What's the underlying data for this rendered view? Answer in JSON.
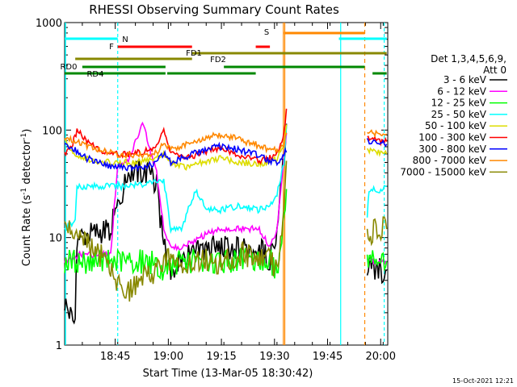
{
  "chart_data": {
    "type": "line",
    "title": "RHESSI Observing Summary Count Rates",
    "xlabel": "Start Time (13-Mar-05 18:30:42)",
    "ylabel_main": "Count Rate (s",
    "ylabel_sup1": "-1",
    "ylabel_mid": " detector",
    "ylabel_sup2": "-1",
    "ylabel_end": ")",
    "yscale": "log",
    "ylim": [
      1,
      1000
    ],
    "xlim_minutes": [
      0,
      91.3
    ],
    "x_ticks": [
      {
        "m": 14.3,
        "label": "18:45"
      },
      {
        "m": 29.3,
        "label": "19:00"
      },
      {
        "m": 44.3,
        "label": "19:15"
      },
      {
        "m": 59.3,
        "label": "19:30"
      },
      {
        "m": 74.3,
        "label": "19:45"
      },
      {
        "m": 89.3,
        "label": "20:00"
      }
    ],
    "y_ticks": [
      {
        "v": 1,
        "label": "1"
      },
      {
        "v": 10,
        "label": "10"
      },
      {
        "v": 100,
        "label": "100"
      },
      {
        "v": 1000,
        "label": "1000"
      }
    ],
    "legend_title": "Det 1,3,4,5,6,9,",
    "legend_subtitle": "Att 0",
    "legend_placement": "right",
    "timestamp": "15-Oct-2021 12:21",
    "series": [
      {
        "name": "3 - 6 keV",
        "color": "#000000",
        "x": [
          0,
          3,
          3.5,
          13,
          18,
          24,
          26,
          28,
          30,
          33,
          40,
          48,
          55,
          58,
          60,
          61,
          62,
          63,
          85.5,
          87,
          89,
          91
        ],
        "y": [
          2.5,
          1.5,
          10,
          12,
          40,
          40,
          30,
          8,
          5,
          6,
          8,
          8,
          8,
          6,
          10,
          25,
          60,
          150,
          5,
          5,
          5,
          5
        ]
      },
      {
        "name": "6 - 12 keV",
        "color": "#ff00ff",
        "x": [
          0,
          4,
          4.5,
          13,
          15,
          18,
          22,
          26,
          28,
          30,
          33,
          38,
          44,
          50,
          55,
          58,
          60,
          61,
          62,
          63,
          85.5,
          87,
          89,
          91
        ],
        "y": [
          6,
          7,
          7,
          7,
          50,
          50,
          120,
          40,
          12,
          8,
          8,
          10,
          12,
          12,
          12,
          8,
          12,
          25,
          60,
          120,
          6,
          6,
          6,
          6
        ]
      },
      {
        "name": "12 - 25 keV",
        "color": "#00ff00",
        "x": [
          0,
          10,
          20,
          25,
          28,
          32,
          40,
          48,
          55,
          58,
          60,
          61,
          62,
          63,
          85.5,
          87,
          89,
          91
        ],
        "y": [
          6,
          6,
          6,
          6,
          5,
          6,
          6,
          6,
          6,
          6,
          5,
          8,
          15,
          40,
          6,
          6,
          6,
          6
        ]
      },
      {
        "name": "25 - 50 keV",
        "color": "#00ffff",
        "x": [
          0,
          3,
          3.5,
          13,
          18,
          24,
          28,
          30,
          33,
          37,
          40,
          44,
          50,
          55,
          58,
          60,
          62,
          63,
          85.5,
          86,
          88,
          90,
          91
        ],
        "y": [
          12,
          14,
          30,
          30,
          30,
          32,
          35,
          12,
          12,
          28,
          18,
          18,
          20,
          18,
          20,
          25,
          50,
          150,
          15,
          28,
          28,
          28,
          30
        ]
      },
      {
        "name": "50 - 100 keV",
        "color": "#dddd00",
        "x": [
          0,
          3,
          5,
          8,
          13,
          18,
          24,
          28,
          30,
          34,
          38,
          44,
          50,
          55,
          58,
          60,
          62,
          63,
          85.5,
          87,
          89,
          91
        ],
        "y": [
          80,
          60,
          55,
          52,
          50,
          50,
          52,
          60,
          50,
          45,
          50,
          55,
          50,
          48,
          50,
          55,
          70,
          150,
          65,
          65,
          62,
          60
        ]
      },
      {
        "name": "100 - 300 keV",
        "color": "#ff0000",
        "x": [
          0,
          2,
          3.5,
          6,
          10,
          14,
          18,
          22,
          26,
          28,
          30,
          34,
          38,
          42,
          46,
          50,
          55,
          58,
          60,
          62,
          63,
          85.5,
          87,
          89,
          91
        ],
        "y": [
          60,
          70,
          100,
          80,
          65,
          60,
          60,
          62,
          70,
          100,
          60,
          55,
          60,
          68,
          65,
          58,
          52,
          55,
          60,
          90,
          190,
          85,
          82,
          80,
          78
        ]
      },
      {
        "name": "300 - 800 keV",
        "color": "#0000ff",
        "x": [
          0,
          3,
          6,
          10,
          14,
          18,
          22,
          26,
          28,
          30,
          34,
          38,
          42,
          46,
          50,
          55,
          58,
          60,
          62,
          63,
          85.5,
          87,
          89,
          91
        ],
        "y": [
          72,
          65,
          55,
          50,
          45,
          44,
          45,
          50,
          62,
          50,
          56,
          63,
          70,
          70,
          64,
          58,
          52,
          50,
          58,
          70,
          80,
          78,
          76,
          74
        ]
      },
      {
        "name": "800 - 7000 keV",
        "color": "#ff8800",
        "x": [
          0,
          3,
          6,
          10,
          14,
          18,
          22,
          26,
          28,
          30,
          34,
          38,
          42,
          46,
          50,
          55,
          58,
          60,
          62,
          63,
          85.5,
          87,
          89,
          91
        ],
        "y": [
          85,
          80,
          72,
          65,
          60,
          58,
          58,
          62,
          75,
          65,
          72,
          80,
          88,
          88,
          80,
          72,
          65,
          65,
          72,
          110,
          95,
          95,
          93,
          92
        ]
      },
      {
        "name": "7000 - 15000 keV",
        "color": "#888800",
        "x": [
          0,
          4,
          8,
          12,
          14,
          16,
          18,
          22,
          26,
          28,
          30,
          36,
          42,
          46,
          50,
          55,
          58,
          60,
          61,
          62,
          63,
          85.5,
          87,
          89,
          91
        ],
        "y": [
          14,
          10,
          8,
          6,
          5,
          3,
          3,
          4,
          5,
          6,
          6,
          6,
          6,
          6,
          7,
          7,
          6,
          5,
          10,
          25,
          60,
          12,
          11,
          12,
          12
        ]
      }
    ],
    "ecl_labels": [
      {
        "text": "N",
        "color": "#00ffff"
      },
      {
        "text": "F",
        "color": "#ff0000"
      },
      {
        "text": "FD1",
        "color": "#888800"
      },
      {
        "text": "FD2",
        "color": "#888800"
      },
      {
        "text": "RD0",
        "color": "#008800"
      },
      {
        "text": "RD4",
        "color": "#008800"
      },
      {
        "text": "S",
        "color": "#ff8800"
      }
    ]
  }
}
